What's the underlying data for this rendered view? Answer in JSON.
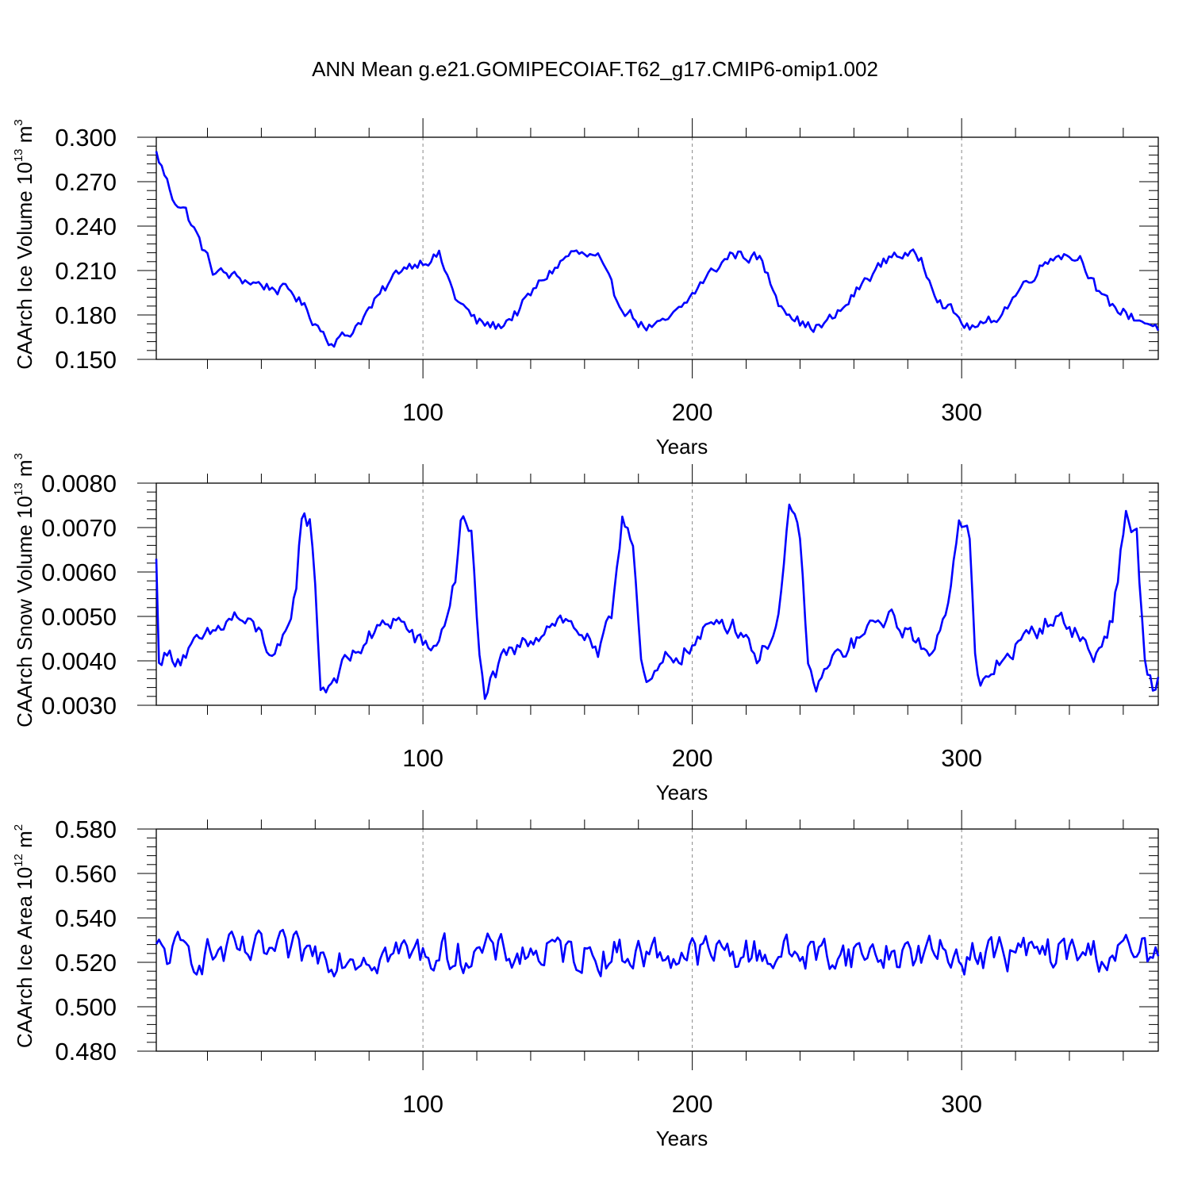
{
  "title": "ANN Mean g.e21.GOMIPECOIAF.T62_g17.CMIP6-omip1.002",
  "colors": {
    "line": "#0000ff",
    "axis": "#000000",
    "grid": "#888888"
  },
  "chart_data": [
    {
      "type": "line",
      "name": "ice-volume",
      "ylabel_main": "CAArch Ice Volume 10",
      "ylabel_exp": "13",
      "ylabel_unit": " m",
      "ylabel_unit_exp": "3",
      "xlabel": "Years",
      "xlim": [
        1,
        373
      ],
      "ylim": [
        0.15,
        0.3
      ],
      "yticks": [
        "0.150",
        "0.180",
        "0.210",
        "0.240",
        "0.270",
        "0.300"
      ],
      "xticks": [
        "100",
        "200",
        "300"
      ],
      "trend": [
        [
          1,
          0.289
        ],
        [
          4,
          0.275
        ],
        [
          7,
          0.26
        ],
        [
          12,
          0.25
        ],
        [
          17,
          0.23
        ],
        [
          22,
          0.21
        ],
        [
          35,
          0.203
        ],
        [
          45,
          0.198
        ],
        [
          52,
          0.195
        ],
        [
          60,
          0.175
        ],
        [
          66,
          0.162
        ],
        [
          72,
          0.166
        ],
        [
          82,
          0.188
        ],
        [
          92,
          0.212
        ],
        [
          100,
          0.217
        ],
        [
          106,
          0.22
        ],
        [
          112,
          0.192
        ],
        [
          120,
          0.175
        ],
        [
          128,
          0.172
        ],
        [
          135,
          0.182
        ],
        [
          145,
          0.205
        ],
        [
          155,
          0.222
        ],
        [
          165,
          0.218
        ],
        [
          172,
          0.19
        ],
        [
          182,
          0.172
        ],
        [
          188,
          0.172
        ],
        [
          195,
          0.182
        ],
        [
          205,
          0.205
        ],
        [
          215,
          0.222
        ],
        [
          225,
          0.218
        ],
        [
          232,
          0.19
        ],
        [
          242,
          0.172
        ],
        [
          248,
          0.172
        ],
        [
          255,
          0.182
        ],
        [
          265,
          0.205
        ],
        [
          275,
          0.222
        ],
        [
          285,
          0.218
        ],
        [
          292,
          0.19
        ],
        [
          302,
          0.172
        ],
        [
          308,
          0.172
        ],
        [
          315,
          0.182
        ],
        [
          325,
          0.205
        ],
        [
          335,
          0.222
        ],
        [
          345,
          0.218
        ],
        [
          352,
          0.19
        ],
        [
          362,
          0.18
        ],
        [
          373,
          0.172
        ]
      ],
      "noise": 0.0065
    },
    {
      "type": "line",
      "name": "snow-volume",
      "ylabel_main": "CAArch Snow Volume 10",
      "ylabel_exp": "13",
      "ylabel_unit": " m",
      "ylabel_unit_exp": "3",
      "xlabel": "Years",
      "xlim": [
        1,
        373
      ],
      "ylim": [
        0.003,
        0.008
      ],
      "yticks": [
        "0.0030",
        "0.0040",
        "0.0050",
        "0.0060",
        "0.0070",
        "0.0080"
      ],
      "xticks": [
        "100",
        "200",
        "300"
      ],
      "trend": [
        [
          1,
          0.0062
        ],
        [
          2,
          0.0041
        ],
        [
          10,
          0.0041
        ],
        [
          20,
          0.0045
        ],
        [
          30,
          0.005
        ],
        [
          40,
          0.0046
        ],
        [
          45,
          0.004
        ],
        [
          50,
          0.0046
        ],
        [
          53,
          0.0058
        ],
        [
          55,
          0.0073
        ],
        [
          58,
          0.0071
        ],
        [
          60,
          0.0058
        ],
        [
          62,
          0.0034
        ],
        [
          64,
          0.0034
        ],
        [
          72,
          0.004
        ],
        [
          80,
          0.0045
        ],
        [
          90,
          0.005
        ],
        [
          100,
          0.0043
        ],
        [
          106,
          0.0044
        ],
        [
          112,
          0.0058
        ],
        [
          114,
          0.0073
        ],
        [
          118,
          0.0068
        ],
        [
          121,
          0.004
        ],
        [
          123,
          0.0033
        ],
        [
          130,
          0.004
        ],
        [
          140,
          0.0045
        ],
        [
          150,
          0.005
        ],
        [
          160,
          0.0046
        ],
        [
          165,
          0.004
        ],
        [
          170,
          0.005
        ],
        [
          174,
          0.0073
        ],
        [
          178,
          0.0068
        ],
        [
          181,
          0.004
        ],
        [
          183,
          0.0033
        ],
        [
          190,
          0.004
        ],
        [
          200,
          0.0043
        ],
        [
          210,
          0.005
        ],
        [
          220,
          0.0046
        ],
        [
          225,
          0.004
        ],
        [
          232,
          0.005
        ],
        [
          236,
          0.0073
        ],
        [
          240,
          0.0068
        ],
        [
          243,
          0.004
        ],
        [
          245,
          0.0033
        ],
        [
          252,
          0.004
        ],
        [
          262,
          0.0045
        ],
        [
          272,
          0.005
        ],
        [
          282,
          0.0046
        ],
        [
          287,
          0.004
        ],
        [
          294,
          0.005
        ],
        [
          299,
          0.0073
        ],
        [
          303,
          0.0068
        ],
        [
          305,
          0.004
        ],
        [
          307,
          0.0033
        ],
        [
          314,
          0.004
        ],
        [
          324,
          0.0045
        ],
        [
          334,
          0.005
        ],
        [
          344,
          0.0046
        ],
        [
          349,
          0.004
        ],
        [
          356,
          0.005
        ],
        [
          361,
          0.0073
        ],
        [
          365,
          0.0068
        ],
        [
          368,
          0.004
        ],
        [
          371,
          0.0033
        ],
        [
          373,
          0.0036
        ]
      ],
      "noise": 0.00035
    },
    {
      "type": "line",
      "name": "ice-area",
      "ylabel_main": "CAArch Ice Area 10",
      "ylabel_exp": "12",
      "ylabel_unit": " m",
      "ylabel_unit_exp": "2",
      "xlabel": "Years",
      "xlim": [
        1,
        373
      ],
      "ylim": [
        0.48,
        0.58
      ],
      "yticks": [
        "0.480",
        "0.500",
        "0.520",
        "0.540",
        "0.560",
        "0.580"
      ],
      "xticks": [
        "100",
        "200",
        "300"
      ],
      "trend": [
        [
          1,
          0.524
        ],
        [
          373,
          0.524
        ]
      ],
      "noise": 0.013
    }
  ]
}
